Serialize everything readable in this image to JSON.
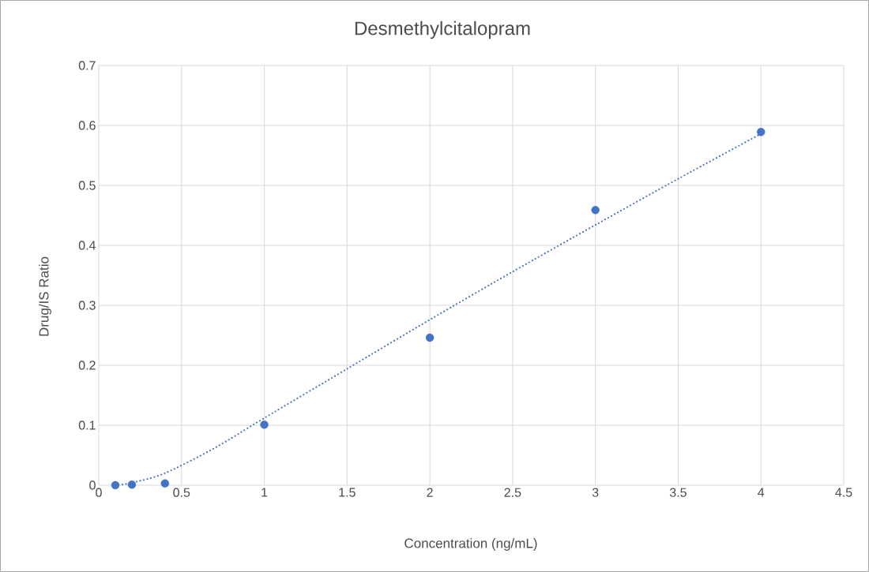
{
  "chart_data": {
    "type": "scatter",
    "title": "Desmethylcitalopram",
    "xlabel": "Concentration (ng/mL)",
    "ylabel": "Drug/IS Ratio",
    "xlim": [
      0,
      4.5
    ],
    "ylim": [
      0,
      0.7
    ],
    "xticks": [
      0,
      0.5,
      1,
      1.5,
      2,
      2.5,
      3,
      3.5,
      4,
      4.5
    ],
    "yticks": [
      0,
      0.1,
      0.2,
      0.3,
      0.4,
      0.5,
      0.6,
      0.7
    ],
    "grid": true,
    "series": [
      {
        "color": "#4472c4",
        "marker": "circle",
        "x": [
          0.1,
          0.2,
          0.4,
          1,
          2,
          3,
          4
        ],
        "values": [
          0.0,
          0.001,
          0.003,
          0.101,
          0.246,
          0.459,
          0.589
        ]
      },
      {
        "type": "line",
        "color": "#4472c4",
        "marker": "none",
        "line_style": "dotted",
        "x": [
          0.1,
          0.2,
          0.4,
          0.7,
          1,
          1.5,
          2,
          2.5,
          3,
          3.5,
          4
        ],
        "values": [
          0.0,
          0.004,
          0.02,
          0.062,
          0.112,
          0.194,
          0.276,
          0.356,
          0.434,
          0.511,
          0.586
        ]
      }
    ]
  }
}
